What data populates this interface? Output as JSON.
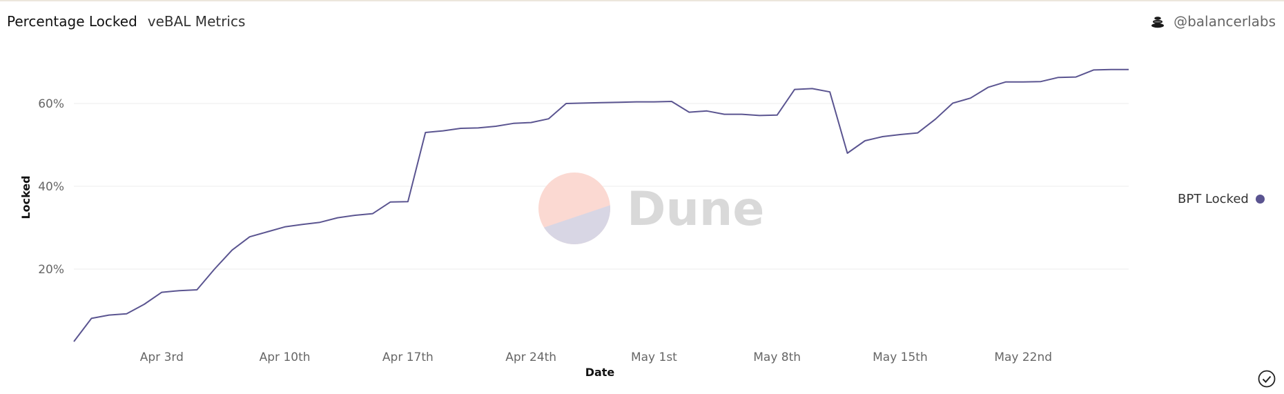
{
  "header": {
    "title": "Percentage Locked",
    "subtitle": "veBAL Metrics",
    "author": "@balancerlabs"
  },
  "watermark": "Dune",
  "legend": {
    "label": "BPT Locked"
  },
  "colors": {
    "series": "#5a5490",
    "grid": "#ececec",
    "watermark_top": "#fbd9d2",
    "watermark_bottom": "#d8d6e4"
  },
  "icons": {
    "author": "balancer-logo-icon",
    "check": "check-circle-icon"
  },
  "chart_data": {
    "type": "line",
    "title": "Percentage Locked",
    "xlabel": "Date",
    "ylabel": "Locked",
    "x_start": "2022-03-29",
    "x_end": "2022-05-28",
    "x_ticks": [
      {
        "date": "2022-04-03",
        "label": "Apr 3rd"
      },
      {
        "date": "2022-04-10",
        "label": "Apr 10th"
      },
      {
        "date": "2022-04-17",
        "label": "Apr 17th"
      },
      {
        "date": "2022-04-24",
        "label": "Apr 24th"
      },
      {
        "date": "2022-05-01",
        "label": "May 1st"
      },
      {
        "date": "2022-05-08",
        "label": "May 8th"
      },
      {
        "date": "2022-05-15",
        "label": "May 15th"
      },
      {
        "date": "2022-05-22",
        "label": "May 22nd"
      }
    ],
    "y_ticks": [
      {
        "value": 20,
        "label": "20%"
      },
      {
        "value": 40,
        "label": "40%"
      },
      {
        "value": 60,
        "label": "60%"
      }
    ],
    "ylim": [
      2.5,
      72
    ],
    "grid": true,
    "legend_position": "right",
    "series": [
      {
        "name": "BPT Locked",
        "points": [
          [
            "2022-03-29",
            2.5
          ],
          [
            "2022-03-30",
            8.1
          ],
          [
            "2022-03-31",
            8.9
          ],
          [
            "2022-04-01",
            9.2
          ],
          [
            "2022-04-02",
            11.5
          ],
          [
            "2022-04-03",
            14.4
          ],
          [
            "2022-04-04",
            14.8
          ],
          [
            "2022-04-05",
            15.0
          ],
          [
            "2022-04-06",
            20.0
          ],
          [
            "2022-04-07",
            24.6
          ],
          [
            "2022-04-08",
            27.8
          ],
          [
            "2022-04-09",
            29.0
          ],
          [
            "2022-04-10",
            30.2
          ],
          [
            "2022-04-11",
            30.8
          ],
          [
            "2022-04-12",
            31.3
          ],
          [
            "2022-04-13",
            32.4
          ],
          [
            "2022-04-14",
            33.0
          ],
          [
            "2022-04-15",
            33.4
          ],
          [
            "2022-04-16",
            36.2
          ],
          [
            "2022-04-17",
            36.3
          ],
          [
            "2022-04-18",
            53.0
          ],
          [
            "2022-04-19",
            53.4
          ],
          [
            "2022-04-20",
            54.0
          ],
          [
            "2022-04-21",
            54.1
          ],
          [
            "2022-04-22",
            54.5
          ],
          [
            "2022-04-23",
            55.2
          ],
          [
            "2022-04-24",
            55.4
          ],
          [
            "2022-04-25",
            56.3
          ],
          [
            "2022-04-26",
            60.0
          ],
          [
            "2022-04-27",
            60.1
          ],
          [
            "2022-04-28",
            60.2
          ],
          [
            "2022-04-29",
            60.3
          ],
          [
            "2022-04-30",
            60.4
          ],
          [
            "2022-05-01",
            60.4
          ],
          [
            "2022-05-02",
            60.5
          ],
          [
            "2022-05-03",
            57.9
          ],
          [
            "2022-05-04",
            58.2
          ],
          [
            "2022-05-05",
            57.4
          ],
          [
            "2022-05-06",
            57.4
          ],
          [
            "2022-05-07",
            57.1
          ],
          [
            "2022-05-08",
            57.2
          ],
          [
            "2022-05-09",
            63.4
          ],
          [
            "2022-05-10",
            63.6
          ],
          [
            "2022-05-11",
            62.8
          ],
          [
            "2022-05-12",
            48.0
          ],
          [
            "2022-05-13",
            51.0
          ],
          [
            "2022-05-14",
            52.0
          ],
          [
            "2022-05-15",
            52.5
          ],
          [
            "2022-05-16",
            52.9
          ],
          [
            "2022-05-17",
            56.2
          ],
          [
            "2022-05-18",
            60.1
          ],
          [
            "2022-05-19",
            61.3
          ],
          [
            "2022-05-20",
            63.9
          ],
          [
            "2022-05-21",
            65.2
          ],
          [
            "2022-05-22",
            65.2
          ],
          [
            "2022-05-23",
            65.3
          ],
          [
            "2022-05-24",
            66.3
          ],
          [
            "2022-05-25",
            66.4
          ],
          [
            "2022-05-26",
            68.1
          ],
          [
            "2022-05-27",
            68.2
          ],
          [
            "2022-05-28",
            68.2
          ]
        ]
      }
    ]
  }
}
